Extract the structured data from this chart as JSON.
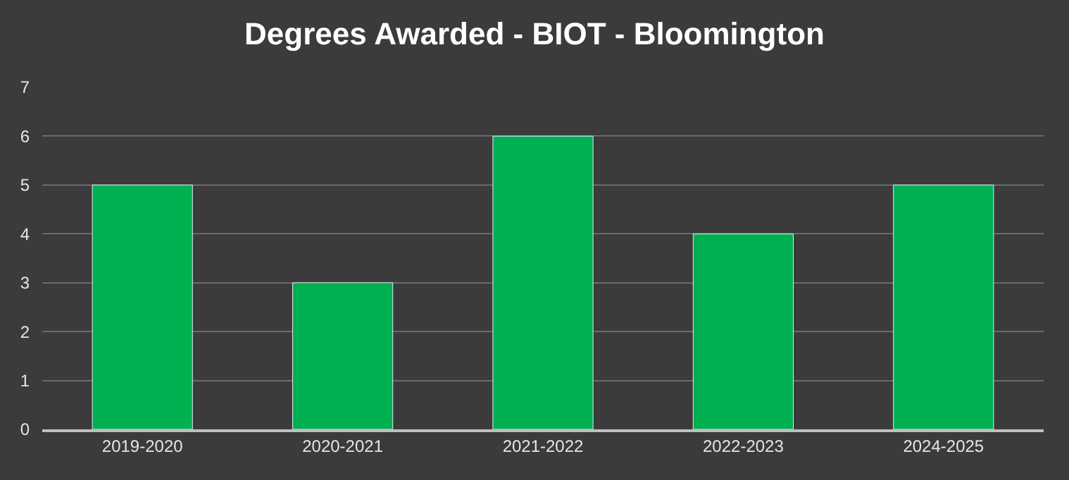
{
  "chart_data": {
    "type": "bar",
    "title": "Degrees Awarded - BIOT - Bloomington",
    "categories": [
      "2019-2020",
      "2020-2021",
      "2021-2022",
      "2022-2023",
      "2024-2025"
    ],
    "values": [
      5,
      3,
      6,
      4,
      5
    ],
    "color": "#00b050",
    "ylim": [
      0,
      7
    ],
    "yticks": [
      0,
      1,
      2,
      3,
      4,
      5,
      6,
      7
    ],
    "grid": "y"
  }
}
